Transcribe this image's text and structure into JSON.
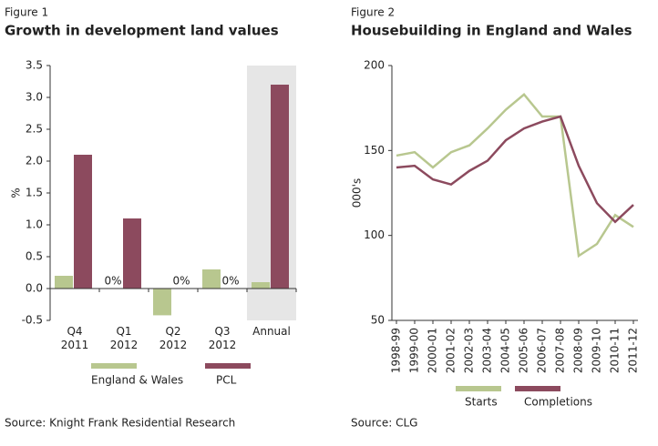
{
  "chart_data": [
    {
      "type": "bar",
      "figure": "Figure 1",
      "title": "Growth in development land values",
      "ylabel": "%",
      "source": "Source: Knight Frank Residential Research",
      "categories": [
        "Q4 2011",
        "Q1 2012",
        "Q2 2012",
        "Q3 2012",
        "Annual"
      ],
      "series": [
        {
          "name": "England & Wales",
          "color": "#b8c78f",
          "values": [
            0.2,
            0,
            -0.42,
            0.3,
            0.1
          ],
          "value_labels": [
            null,
            "0%",
            null,
            null,
            null
          ]
        },
        {
          "name": "PCL",
          "color": "#8c4a5e",
          "values": [
            2.1,
            1.1,
            0,
            0,
            3.2
          ],
          "value_labels": [
            null,
            null,
            "0%",
            "0%",
            null
          ]
        }
      ],
      "shaded_category": 4,
      "shade_color": "#e6e6e6",
      "ylim": [
        -0.5,
        3.5
      ],
      "yticks": [
        -0.5,
        {
          "value": 0,
          "label": "0.0"
        },
        0.5,
        {
          "value": 1,
          "label": "1.0"
        },
        1.5,
        {
          "value": 2,
          "label": "2.0"
        },
        2.5,
        {
          "value": 3,
          "label": "3.0"
        },
        3.5
      ]
    },
    {
      "type": "line",
      "figure": "Figure 2",
      "title": "Housebuilding in England and Wales",
      "ylabel": "000's",
      "source": "Source: CLG",
      "categories": [
        "1998-99",
        "1999-00",
        "2000-01",
        "2001-02",
        "2002-03",
        "2003-04",
        "2004-05",
        "2005-06",
        "2006-07",
        "2007-08",
        "2008-09",
        "2009-10",
        "2010-11",
        "2011-12"
      ],
      "series": [
        {
          "name": "Starts",
          "color": "#b8c78f",
          "values": [
            147,
            149,
            140,
            149,
            153,
            163,
            174,
            183,
            170,
            170,
            88,
            95,
            112,
            105
          ]
        },
        {
          "name": "Completions",
          "color": "#8c4a5e",
          "values": [
            140,
            141,
            133,
            130,
            138,
            144,
            156,
            163,
            167,
            170,
            141,
            119,
            108,
            118
          ]
        }
      ],
      "ylim": [
        50,
        200
      ],
      "yticks": [
        50,
        100,
        150,
        200
      ]
    }
  ]
}
